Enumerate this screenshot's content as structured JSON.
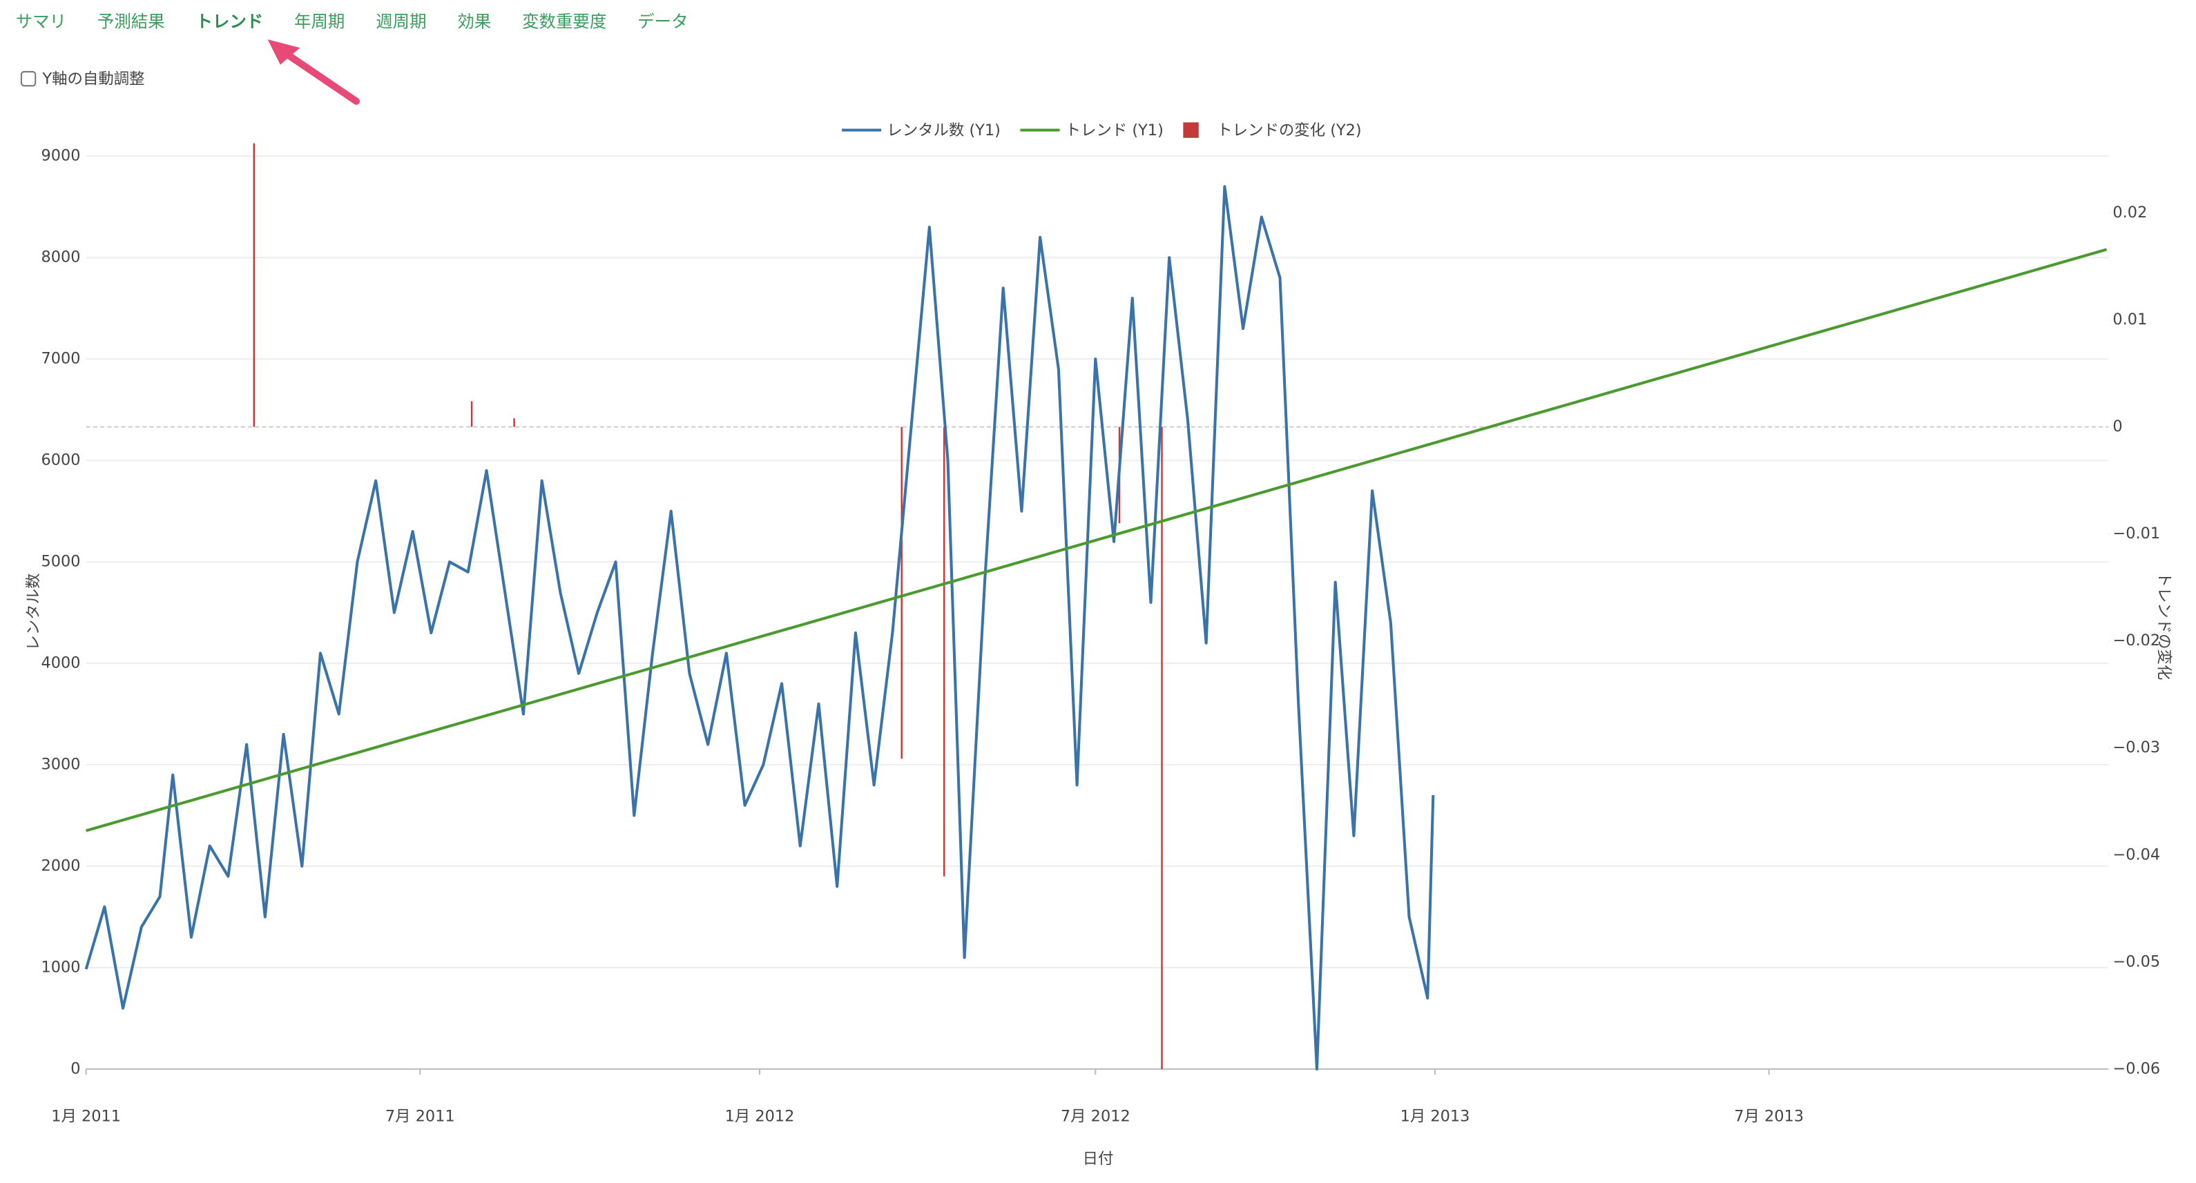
{
  "tabs": [
    "サマリ",
    "予測結果",
    "トレンド",
    "年周期",
    "週周期",
    "効果",
    "変数重要度",
    "データ"
  ],
  "active_tab": 2,
  "checkbox_label": "Y軸の自動調整",
  "chart_data": {
    "type": "line",
    "x_label": "日付",
    "y_label": "レンタル数",
    "y2_label": "トレンドの変化",
    "xlim": [
      "2011-01-01",
      "2014-01-01"
    ],
    "xticks": [
      {
        "value": "2011-01-01",
        "label": "1月 2011"
      },
      {
        "value": "2011-07-01",
        "label": "7月 2011"
      },
      {
        "value": "2012-01-01",
        "label": "1月 2012"
      },
      {
        "value": "2012-07-01",
        "label": "7月 2012"
      },
      {
        "value": "2013-01-01",
        "label": "1月 2013"
      },
      {
        "value": "2013-07-01",
        "label": "7月 2013"
      }
    ],
    "ylim": [
      0,
      9000
    ],
    "yticks": [
      0,
      1000,
      2000,
      3000,
      4000,
      5000,
      6000,
      7000,
      8000,
      9000
    ],
    "y2lim": [
      -0.06,
      0.0253
    ],
    "y2ticks": [
      {
        "value": -0.06,
        "label": "−0.06"
      },
      {
        "value": -0.05,
        "label": "−0.05"
      },
      {
        "value": -0.04,
        "label": "−0.04"
      },
      {
        "value": -0.03,
        "label": "−0.03"
      },
      {
        "value": -0.02,
        "label": "−0.02"
      },
      {
        "value": -0.01,
        "label": "−0.01"
      },
      0,
      0.01,
      0.02
    ],
    "grid": true,
    "legend": "top",
    "series": [
      {
        "name": "レンタル数 (Y1)",
        "type": "line",
        "color": "#3a73a9",
        "x": [
          "2011-01-01",
          "2011-01-11",
          "2011-01-21",
          "2011-01-31",
          "2011-02-10",
          "2011-02-17",
          "2011-02-27",
          "2011-03-09",
          "2011-03-19",
          "2011-03-29",
          "2011-04-08",
          "2011-04-18",
          "2011-04-28",
          "2011-05-08",
          "2011-05-18",
          "2011-05-28",
          "2011-06-07",
          "2011-06-17",
          "2011-06-27",
          "2011-07-07",
          "2011-07-17",
          "2011-07-27",
          "2011-08-06",
          "2011-08-16",
          "2011-08-26",
          "2011-09-05",
          "2011-09-15",
          "2011-09-25",
          "2011-10-05",
          "2011-10-15",
          "2011-10-25",
          "2011-11-04",
          "2011-11-14",
          "2011-11-24",
          "2011-12-04",
          "2011-12-14",
          "2011-12-24",
          "2012-01-03",
          "2012-01-13",
          "2012-01-23",
          "2012-02-02",
          "2012-02-12",
          "2012-02-22",
          "2012-03-03",
          "2012-03-13",
          "2012-03-23",
          "2012-04-02",
          "2012-04-12",
          "2012-04-21",
          "2012-05-02",
          "2012-05-12",
          "2012-05-22",
          "2012-06-01",
          "2012-06-11",
          "2012-06-21",
          "2012-07-01",
          "2012-07-11",
          "2012-07-21",
          "2012-07-31",
          "2012-08-10",
          "2012-08-20",
          "2012-08-30",
          "2012-09-09",
          "2012-09-19",
          "2012-09-29",
          "2012-10-09",
          "2012-10-19",
          "2012-10-29",
          "2012-11-08",
          "2012-11-18",
          "2012-11-28",
          "2012-12-08",
          "2012-12-18",
          "2012-12-28",
          "2012-12-31"
        ],
        "values": [
          985,
          1600,
          600,
          1400,
          1700,
          2900,
          1300,
          2200,
          1900,
          3200,
          1500,
          3300,
          2000,
          4100,
          3500,
          5000,
          5800,
          4500,
          5300,
          4300,
          5000,
          4900,
          5900,
          4700,
          3500,
          5800,
          4700,
          3900,
          4500,
          5000,
          2500,
          4100,
          5500,
          3900,
          3200,
          4100,
          2600,
          3000,
          3800,
          2200,
          3600,
          1800,
          4300,
          2800,
          4300,
          6300,
          8300,
          6000,
          1100,
          4800,
          7700,
          5500,
          8200,
          6900,
          2800,
          7000,
          5200,
          7600,
          4600,
          8000,
          6400,
          4200,
          8700,
          7300,
          8400,
          7800,
          3600,
          0,
          4800,
          2300,
          5700,
          4400,
          1500,
          700,
          2700
        ]
      },
      {
        "name": "トレンド (Y1)",
        "type": "line",
        "color": "#4a9a2f",
        "x": [
          "2011-01-01",
          "2013-12-31"
        ],
        "values": [
          2350,
          8080
        ]
      },
      {
        "name": "トレンドの変化 (Y2)",
        "type": "bar",
        "color": "#c43a3a",
        "axis": "y2",
        "x": [
          "2011-04-02",
          "2011-07-29",
          "2011-08-21",
          "2012-03-18",
          "2012-04-10",
          "2012-07-14",
          "2012-08-06"
        ],
        "values": [
          0.0265,
          0.0024,
          0.0008,
          -0.031,
          -0.042,
          -0.009,
          -0.06
        ]
      }
    ]
  }
}
